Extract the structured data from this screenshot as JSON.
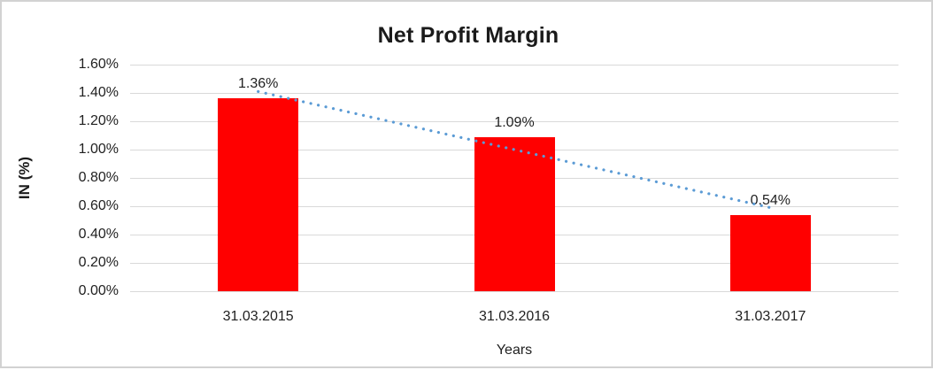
{
  "chart_data": {
    "type": "bar",
    "title": "Net Profit Margin",
    "categories": [
      "31.03.2015",
      "31.03.2016",
      "31.03.2017"
    ],
    "values": [
      1.36,
      1.09,
      0.54
    ],
    "data_labels": [
      "1.36%",
      "1.09%",
      "0.54%"
    ],
    "xlabel": "Years",
    "ylabel": "IN (%)",
    "ylim": [
      0,
      1.6
    ],
    "yticks": [
      {
        "value": 0.0,
        "label": "0.00%"
      },
      {
        "value": 0.2,
        "label": "0.20%"
      },
      {
        "value": 0.4,
        "label": "0.40%"
      },
      {
        "value": 0.6,
        "label": "0.60%"
      },
      {
        "value": 0.8,
        "label": "0.80%"
      },
      {
        "value": 1.0,
        "label": "1.00%"
      },
      {
        "value": 1.2,
        "label": "1.20%"
      },
      {
        "value": 1.4,
        "label": "1.40%"
      },
      {
        "value": 1.6,
        "label": "1.60%"
      }
    ],
    "grid": true,
    "legend": "none",
    "bar_color": "#FF0000",
    "gridline_color": "#D9D9D9",
    "trendline": {
      "style": "dotted",
      "color": "#5B9BD5",
      "start_category_index": 0,
      "end_category_index": 2,
      "start_value": 1.41,
      "end_value": 0.59
    }
  }
}
